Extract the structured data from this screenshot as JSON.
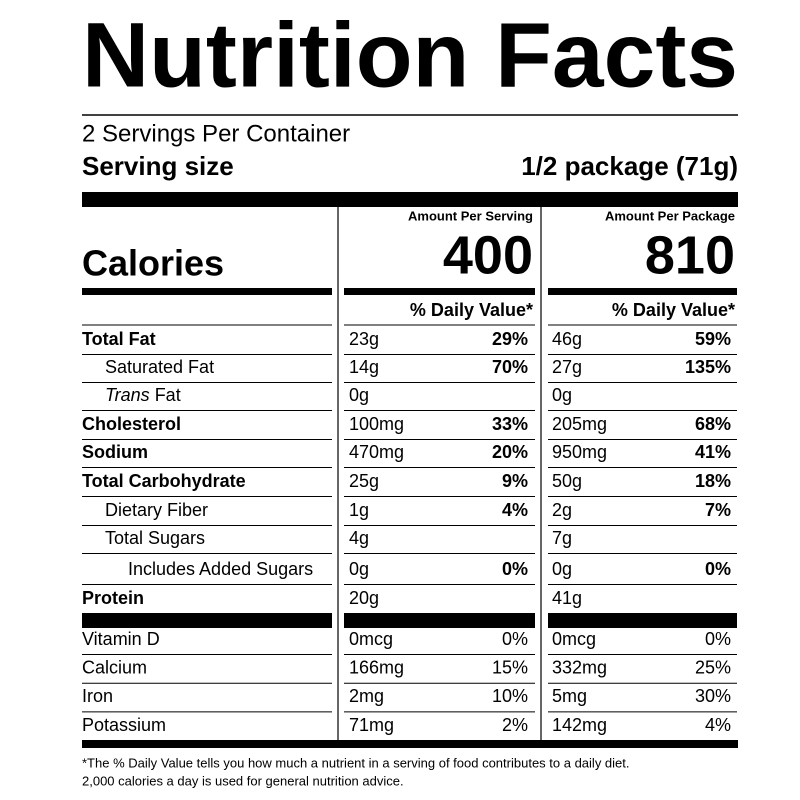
{
  "title": "Nutrition Facts",
  "servings_per_container": "2 Servings Per Container",
  "serving_size": {
    "label": "Serving size",
    "value": "1/2 package (71g)"
  },
  "calories_label": "Calories",
  "columns": [
    {
      "heading": "Amount Per Serving",
      "calories": "400",
      "dv_heading": "% Daily Value*"
    },
    {
      "heading": "Amount Per Package",
      "calories": "810",
      "dv_heading": "% Daily Value*"
    }
  ],
  "nutrients": [
    {
      "label": "Total Fat",
      "values": [
        {
          "amount": "23g",
          "dv": "29%"
        },
        {
          "amount": "46g",
          "dv": "59%"
        }
      ]
    },
    {
      "label": "Saturated Fat",
      "values": [
        {
          "amount": "14g",
          "dv": "70%"
        },
        {
          "amount": "27g",
          "dv": "135%"
        }
      ]
    },
    {
      "label_italic": "Trans",
      "label": "Fat",
      "values": [
        {
          "amount": "0g"
        },
        {
          "amount": "0g"
        }
      ]
    },
    {
      "label": "Cholesterol",
      "values": [
        {
          "amount": "100mg",
          "dv": "33%"
        },
        {
          "amount": "205mg",
          "dv": "68%"
        }
      ]
    },
    {
      "label": "Sodium",
      "values": [
        {
          "amount": "470mg",
          "dv": "20%"
        },
        {
          "amount": "950mg",
          "dv": "41%"
        }
      ]
    },
    {
      "label": "Total Carbohydrate",
      "values": [
        {
          "amount": "25g",
          "dv": "9%"
        },
        {
          "amount": "50g",
          "dv": "18%"
        }
      ]
    },
    {
      "label": "Dietary Fiber",
      "values": [
        {
          "amount": "1g",
          "dv": "4%"
        },
        {
          "amount": "2g",
          "dv": "7%"
        }
      ]
    },
    {
      "label": "Total Sugars",
      "values": [
        {
          "amount": "4g"
        },
        {
          "amount": "7g"
        }
      ]
    },
    {
      "label": "Includes Added Sugars",
      "values": [
        {
          "amount": "0g",
          "dv": "0%"
        },
        {
          "amount": "0g",
          "dv": "0%"
        }
      ]
    },
    {
      "label": "Protein",
      "values": [
        {
          "amount": "20g"
        },
        {
          "amount": "41g"
        }
      ]
    }
  ],
  "vitamins": [
    {
      "label": "Vitamin D",
      "values": [
        {
          "amount": "0mcg",
          "dv": "0%"
        },
        {
          "amount": "0mcg",
          "dv": "0%"
        }
      ]
    },
    {
      "label": "Calcium",
      "values": [
        {
          "amount": "166mg",
          "dv": "15%"
        },
        {
          "amount": "332mg",
          "dv": "25%"
        }
      ]
    },
    {
      "label": "Iron",
      "values": [
        {
          "amount": "2mg",
          "dv": "10%"
        },
        {
          "amount": "5mg",
          "dv": "30%"
        }
      ]
    },
    {
      "label": "Potassium",
      "values": [
        {
          "amount": "71mg",
          "dv": "2%"
        },
        {
          "amount": "142mg",
          "dv": "4%"
        }
      ]
    }
  ],
  "footnote": [
    "*The % Daily Value tells you how much a nutrient in a serving of food contributes to a daily diet.",
    "2,000 calories a day is used for general nutrition advice."
  ]
}
